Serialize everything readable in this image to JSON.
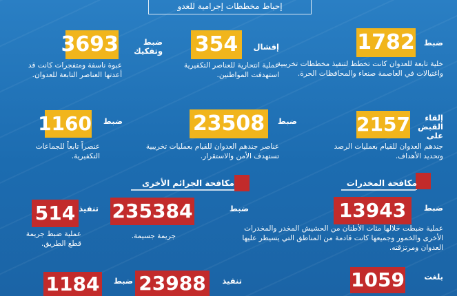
{
  "header": {
    "title": "إحباط مخططات إجرامية للعدو"
  },
  "row1": [
    {
      "number": "1782",
      "label": "ضبط",
      "desc": "خلية تابعة للعدوان كانت تخطط لتنفيذ مخططات تخريبية واغتيالات في العاصمة صنعاء والمحافظات الحرة."
    },
    {
      "number": "354",
      "label": "إفشال",
      "desc": "عملية انتحارية للعناصر التكفيرية استهدفت المواطنين."
    },
    {
      "number": "3693",
      "label": "ضبط وتفكيك",
      "desc": "عبوة ناسفة ومتفجرات كانت قد أعدتها العناصر التابعة للعدوان."
    }
  ],
  "row2": [
    {
      "number": "2157",
      "label": "إلقاء القبض على",
      "desc": "جندهم العدوان للقيام بعمليات الرصد وتحديد الأهداف."
    },
    {
      "number": "23508",
      "label": "ضبط",
      "desc": "عناصر جندهم العدوان للقيام بعمليات تخريبية تستهدف الأمن والاستقرار."
    },
    {
      "number": "1160",
      "label": "ضبط",
      "desc": "عنصراً تابعاً للجماعات التكفيرية."
    }
  ],
  "drugs": {
    "title": "مكافحة المخدرات",
    "items": [
      {
        "number": "13943",
        "label": "ضبط",
        "desc": "عملية ضبطت خلالها مئات الأطنان من الحشيش المخدر والمخدرات الأخرى والخمور وجميعها كانت قادمة من المناطق التي يسيطر عليها العدوان ومرتزقته."
      },
      {
        "number": "1059",
        "label": "بلغت",
        "desc": ""
      }
    ]
  },
  "crimes": {
    "title": "مكافحة الجرائم الأخرى",
    "items": [
      {
        "number": "235384",
        "label": "ضبط",
        "desc": "جريمة جسيمة."
      },
      {
        "number": "514",
        "label": "تنفيذ",
        "desc": "عملية ضبط جريمة قطع الطريق."
      },
      {
        "number": "23988",
        "label": "تنفيذ",
        "desc": ""
      },
      {
        "number": "1184",
        "label": "ضبط",
        "desc": ""
      }
    ]
  },
  "colors": {
    "background": "#1f72b8",
    "yellow": "#f1b51c",
    "red": "#c22b2b"
  }
}
